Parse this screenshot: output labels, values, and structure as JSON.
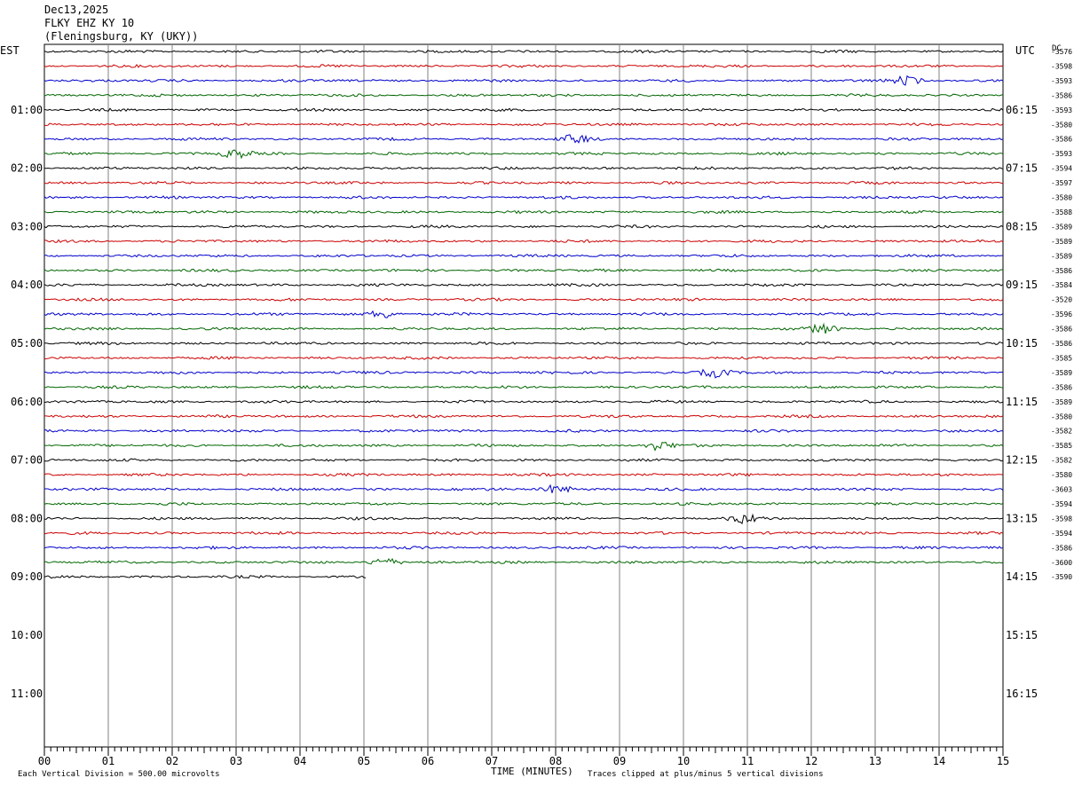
{
  "header": {
    "date": "Dec13,2025",
    "station": "FLKY EHZ KY 10",
    "location": "(Fleningsburg, KY (UKY))"
  },
  "left_zone": "EST",
  "right_zone": "UTC",
  "dc_label": "DC",
  "chart_data": {
    "type": "line",
    "title": "",
    "xlabel": "TIME (MINUTES)",
    "x_ticks": [
      "00",
      "01",
      "02",
      "03",
      "04",
      "05",
      "06",
      "07",
      "08",
      "09",
      "10",
      "11",
      "12",
      "13",
      "14",
      "15"
    ],
    "xlim": [
      0,
      15
    ],
    "rows_per_hour": 4,
    "left_hour_labels": [
      "01:00",
      "02:00",
      "03:00",
      "04:00",
      "05:00",
      "06:00",
      "07:00",
      "08:00",
      "09:00",
      "10:00",
      "11:00"
    ],
    "right_hour_labels": [
      "06:15",
      "07:15",
      "08:15",
      "09:15",
      "10:15",
      "11:15",
      "12:15",
      "13:15",
      "14:15",
      "15:15",
      "16:15"
    ],
    "trace_colors": [
      "#000000",
      "#cc0000",
      "#0000cc",
      "#006600"
    ],
    "trace_offsets": [
      "-3576",
      "-3598",
      "-3593",
      "-3586",
      "-3593",
      "-3580",
      "-3586",
      "-3593",
      "-3594",
      "-3597",
      "-3580",
      "-3588",
      "-3589",
      "-3589",
      "-3589",
      "-3586",
      "-3584",
      "-3520",
      "-3596",
      "-3586",
      "-3586",
      "-3585",
      "-3589",
      "-3586",
      "-3589",
      "-3580",
      "-3582",
      "-3585",
      "-3582",
      "-3580",
      "-3603",
      "-3594",
      "-3598",
      "-3594",
      "-3586",
      "-3600",
      "-3590"
    ],
    "trace_count": 37,
    "partial_last_trace_minutes": 5.05,
    "events": [
      {
        "trace": 2,
        "minute": 13.5
      },
      {
        "trace": 6,
        "minute": 8.3
      },
      {
        "trace": 7,
        "minute": 3.0
      },
      {
        "trace": 18,
        "minute": 5.3
      },
      {
        "trace": 19,
        "minute": 12.2
      },
      {
        "trace": 22,
        "minute": 10.5
      },
      {
        "trace": 27,
        "minute": 9.6
      },
      {
        "trace": 30,
        "minute": 8.0
      },
      {
        "trace": 32,
        "minute": 10.95
      },
      {
        "trace": 35,
        "minute": 5.3
      }
    ],
    "scale_note": "Each Vertical Division =  500.00 microvolts",
    "clip_note": "Traces clipped at plus/minus 5 vertical divisions"
  }
}
